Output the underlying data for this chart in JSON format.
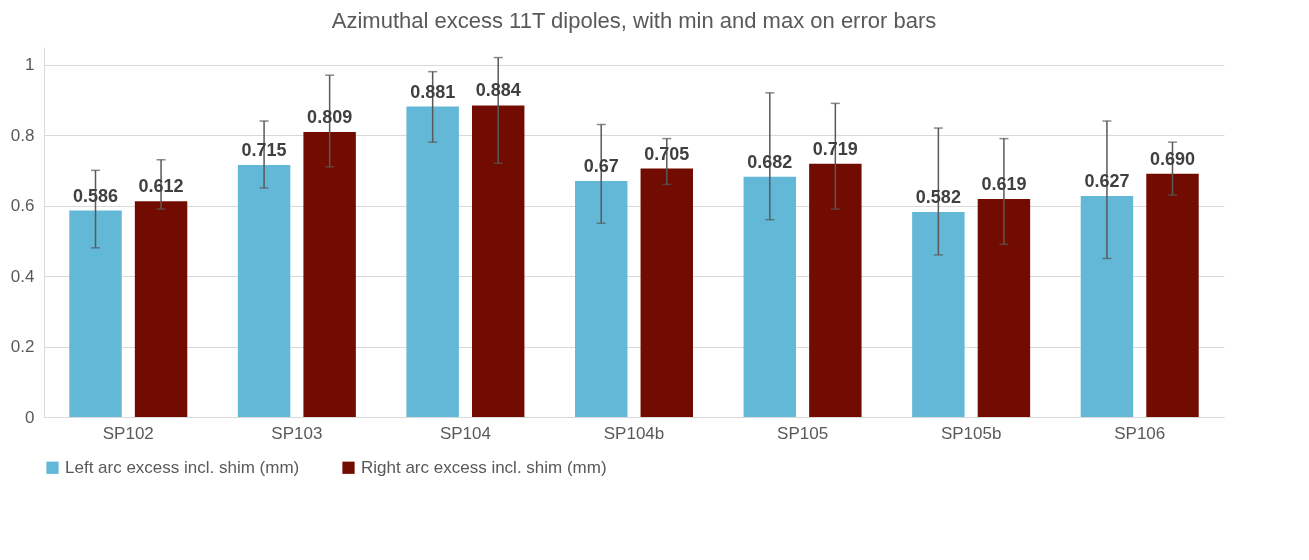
{
  "chart_data": {
    "type": "bar",
    "title": "Azimuthal excess 11T dipoles, with min and max on error bars",
    "categories": [
      "SP102",
      "SP103",
      "SP104",
      "SP104b",
      "SP105",
      "SP105b",
      "SP106"
    ],
    "series": [
      {
        "name": "Left arc excess incl. shim (mm)",
        "color": "#62b8d6",
        "values": [
          0.586,
          0.715,
          0.881,
          0.67,
          0.682,
          0.582,
          0.627
        ],
        "value_labels": [
          "0.586",
          "0.715",
          "0.881",
          "0.67",
          "0.682",
          "0.582",
          "0.627"
        ],
        "errors": [
          [
            0.48,
            0.7
          ],
          [
            0.65,
            0.84
          ],
          [
            0.78,
            0.98
          ],
          [
            0.55,
            0.83
          ],
          [
            0.56,
            0.92
          ],
          [
            0.46,
            0.82
          ],
          [
            0.45,
            0.84
          ]
        ]
      },
      {
        "name": "Right arc excess incl. shim (mm)",
        "color": "#720c00",
        "values": [
          0.612,
          0.809,
          0.884,
          0.705,
          0.719,
          0.619,
          0.69
        ],
        "value_labels": [
          "0.612",
          "0.809",
          "0.884",
          "0.705",
          "0.719",
          "0.619",
          "0.690"
        ],
        "errors": [
          [
            0.59,
            0.73
          ],
          [
            0.71,
            0.97
          ],
          [
            0.72,
            1.02
          ],
          [
            0.66,
            0.79
          ],
          [
            0.59,
            0.89
          ],
          [
            0.49,
            0.79
          ],
          [
            0.63,
            0.78
          ]
        ]
      }
    ],
    "ylim": [
      0,
      1.05
    ],
    "yticks": [
      0,
      0.2,
      0.4,
      0.6,
      0.8,
      1
    ],
    "grid": "y",
    "legend": "bottom"
  }
}
